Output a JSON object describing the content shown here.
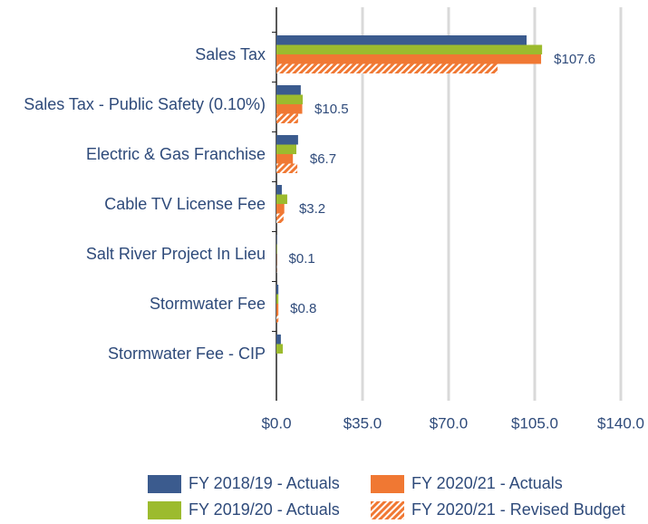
{
  "chart_data": {
    "type": "hbar",
    "categories": [
      "Sales Tax",
      "Sales Tax - Public Safety (0.10%)",
      "Electric & Gas Franchise",
      "Cable TV License Fee",
      "Salt River Project In Lieu",
      "Stormwater Fee",
      "Stormwater Fee - CIP"
    ],
    "series": [
      {
        "name": "FY 2018/19 - Actuals",
        "color": "#3b5b8e",
        "values": [
          101.7,
          9.9,
          8.8,
          2.2,
          0.2,
          0.8,
          1.8
        ]
      },
      {
        "name": "FY 2019/20 - Actuals",
        "color": "#9cbb2e",
        "values": [
          108.0,
          10.7,
          8.1,
          4.4,
          0.2,
          0.8,
          2.6
        ]
      },
      {
        "name": "FY 2020/21 - Actuals",
        "color": "#f07833",
        "values": [
          107.6,
          10.5,
          6.7,
          3.2,
          0.1,
          0.8,
          null
        ],
        "value_labels": [
          "$107.6",
          "$10.5",
          "$6.7",
          "$3.2",
          "$0.1",
          "$0.8",
          null
        ]
      },
      {
        "name": "FY 2020/21 - Revised Budget",
        "color": "#f07833",
        "pattern": "hatch",
        "values": [
          89.9,
          8.8,
          8.5,
          2.9,
          0.1,
          0.8,
          null
        ]
      }
    ],
    "xlim": [
      0,
      140
    ],
    "xticks": [
      {
        "value": 0,
        "label": "$0.0"
      },
      {
        "value": 35,
        "label": "$35.0"
      },
      {
        "value": 70,
        "label": "$70.0"
      },
      {
        "value": 105,
        "label": "$105.0"
      },
      {
        "value": 140,
        "label": "$140.0"
      }
    ],
    "grid": true,
    "legend": "bottom"
  }
}
